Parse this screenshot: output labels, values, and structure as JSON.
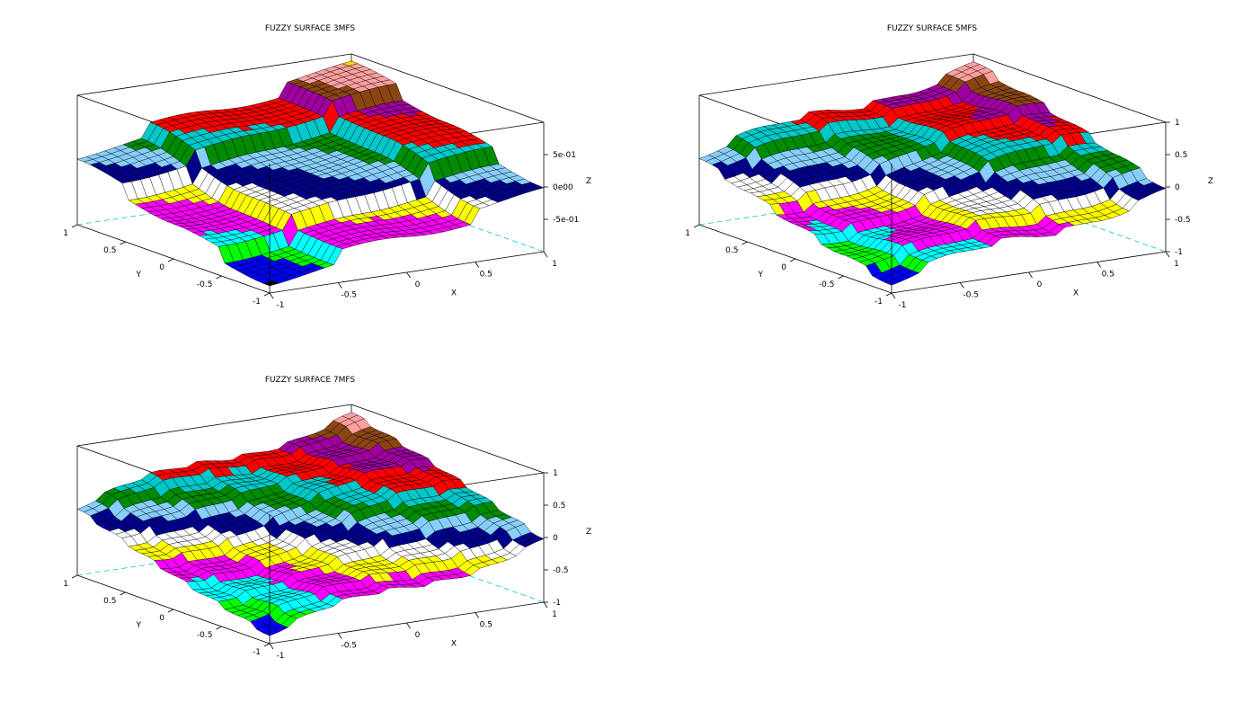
{
  "palette": [
    "#000000",
    "#0000ff",
    "#00ff00",
    "#00ffff",
    "#ff0000",
    "#ff00ff",
    "#ffff00",
    "#ffffff",
    "#00008b",
    "#87cefa",
    "#008b00",
    "#00c8c8",
    "#c80000",
    "#a000a0",
    "#8b4513",
    "#ffa0a0",
    "#ffd700"
  ],
  "chart_data": [
    {
      "type": "surface",
      "title": "FUZZY SURFACE 3MFS",
      "mfs": 3,
      "xlabel": "X",
      "ylabel": "Y",
      "zlabel": "Z",
      "xlim": [
        -1,
        1
      ],
      "ylim": [
        -1,
        1
      ],
      "zlim": [
        -1,
        1
      ],
      "xticks": [
        "-1",
        "-0.5",
        "0",
        "0.5",
        "1"
      ],
      "yticks": [
        "-1",
        "-0.5",
        "0",
        "0.5",
        "1"
      ],
      "zticks": [
        "-5e-01",
        "0e00",
        "5e-01"
      ],
      "zticks_val": [
        -0.5,
        0,
        0.5
      ]
    },
    {
      "type": "surface",
      "title": "FUZZY SURFACE 5MFS",
      "mfs": 5,
      "xlabel": "X",
      "ylabel": "Y",
      "zlabel": "Z",
      "xlim": [
        -1,
        1
      ],
      "ylim": [
        -1,
        1
      ],
      "zlim": [
        -1,
        1
      ],
      "xticks": [
        "-1",
        "-0.5",
        "0",
        "0.5",
        "1"
      ],
      "yticks": [
        "-1",
        "-0.5",
        "0",
        "0.5",
        "1"
      ],
      "zticks": [
        "-1",
        "-0.5",
        "0",
        "0.5",
        "1"
      ],
      "zticks_val": [
        -1,
        -0.5,
        0,
        0.5,
        1
      ]
    },
    {
      "type": "surface",
      "title": "FUZZY SURFACE 7MFS",
      "mfs": 7,
      "xlabel": "X",
      "ylabel": "Y",
      "zlabel": "Z",
      "xlim": [
        -1,
        1
      ],
      "ylim": [
        -1,
        1
      ],
      "zlim": [
        -1,
        1
      ],
      "xticks": [
        "-1",
        "-0.5",
        "0",
        "0.5",
        "1"
      ],
      "yticks": [
        "-1",
        "-0.5",
        "0",
        "0.5",
        "1"
      ],
      "zticks": [
        "-1",
        "-0.5",
        "0",
        "0.5",
        "1"
      ],
      "zticks_val": [
        -1,
        -0.5,
        0,
        0.5,
        1
      ]
    }
  ]
}
